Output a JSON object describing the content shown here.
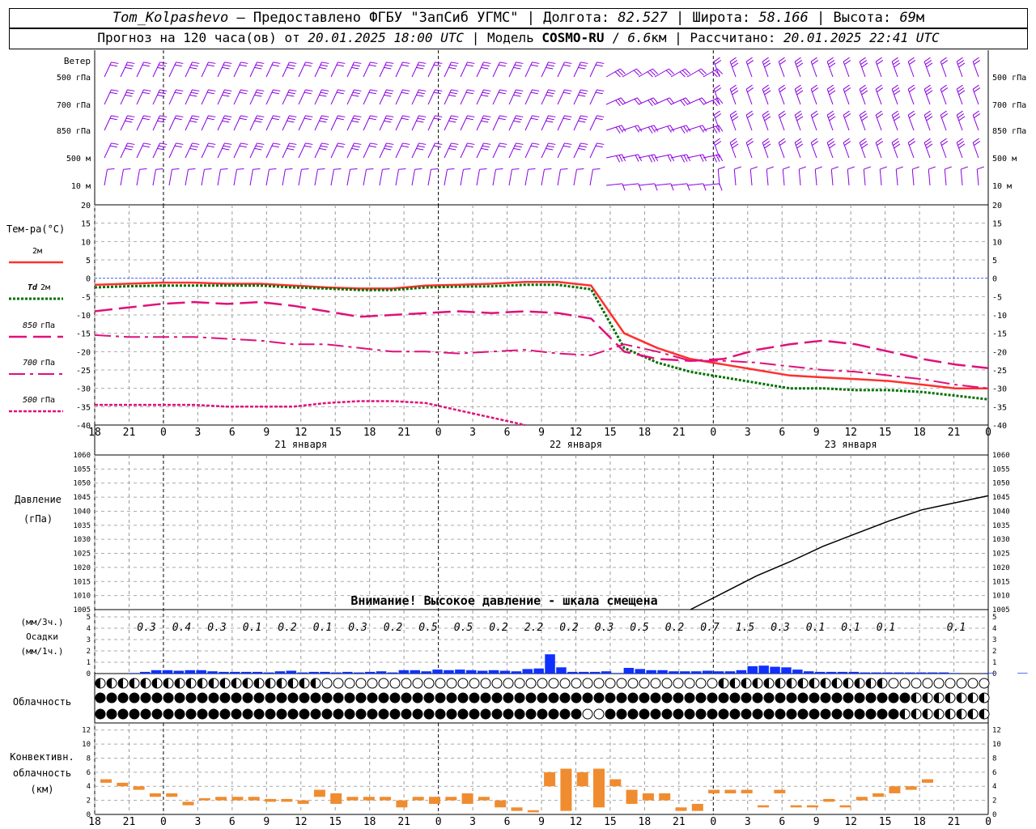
{
  "header": {
    "station": "Tom_Kolpashevo",
    "provider_sep": " — ",
    "provider": "Предоставлено ФГБУ \"ЗапСиб УГМС\" ",
    "lon_label": " Долгота: ",
    "lon": "82.527",
    "lat_label": " Широта: ",
    "lat": "58.166",
    "alt_label": " Высота: ",
    "alt": "69",
    "alt_unit": "м",
    "forecast_prefix": "Прогноз на 120 часа(ов) от ",
    "forecast_from": "20.01.2025 18:00 UTC",
    "model_label": "  Модель ",
    "model": "COSMO-RU",
    "model_sep": " / ",
    "model_res": "6.6",
    "model_res_unit": "км",
    "calc_label": " Рассчитано: ",
    "calc_time": "20.01.2025 22:41 UTC"
  },
  "chart_data": {
    "type": "line",
    "x_ticks": [
      "18",
      "21",
      "0",
      "3",
      "6",
      "9",
      "12",
      "15",
      "18",
      "21",
      "0",
      "3",
      "6",
      "9",
      "12",
      "15",
      "18",
      "21",
      "0",
      "3",
      "6",
      "9",
      "12",
      "15",
      "18",
      "21",
      "0"
    ],
    "day_labels": [
      "21 января",
      "22 января",
      "23 января"
    ],
    "wind": {
      "title": "Ветер",
      "levels": [
        "500 гПа",
        "700 гПа",
        "850 гПа",
        "500 м",
        "10  м"
      ],
      "color": "#8a00e0"
    },
    "temperature": {
      "title": "Тем-ра(°C)",
      "ylim": [
        -40,
        20
      ],
      "yticks": [
        20,
        15,
        10,
        5,
        0,
        -5,
        -10,
        -15,
        -20,
        -25,
        -30,
        -35,
        -40
      ],
      "series": [
        {
          "name": "2м",
          "color": "#ff3030",
          "values": [
            -1.8,
            -1.5,
            -1.2,
            -1.2,
            -1.5,
            -1.5,
            -2,
            -2.5,
            -2.8,
            -2.8,
            -2,
            -1.8,
            -1.5,
            -1,
            -1,
            -2,
            -15,
            -19,
            -22,
            -23.5,
            -25,
            -26.5,
            -27,
            -27.5,
            -28,
            -29,
            -30,
            -30
          ]
        },
        {
          "name": "Td",
          "name_suffix": "2м",
          "color": "#007000",
          "values": [
            -2.5,
            -2.2,
            -2,
            -2,
            -2,
            -2,
            -2.5,
            -2.8,
            -3.2,
            -3.2,
            -2.5,
            -2.3,
            -2.2,
            -1.8,
            -1.8,
            -3,
            -19,
            -23,
            -25.5,
            -27,
            -28.5,
            -30,
            -30,
            -30.5,
            -30.5,
            -31,
            -32,
            -33
          ]
        },
        {
          "name": "850",
          "name_suffix": "гПа",
          "color": "#e0107a",
          "values": [
            -9,
            -8,
            -7,
            -6.5,
            -7,
            -6.5,
            -7.5,
            -9,
            -10.5,
            -10,
            -9.5,
            -9,
            -9.5,
            -9,
            -9.5,
            -11,
            -20,
            -22,
            -22.5,
            -22,
            -19.5,
            -18,
            -17,
            -18,
            -20,
            -22,
            -23.5,
            -24.5
          ]
        },
        {
          "name": "700",
          "name_suffix": "гПа",
          "color": "#e0107a",
          "values": [
            -15.5,
            -16,
            -16,
            -16,
            -16.5,
            -17,
            -18,
            -18,
            -19,
            -20,
            -20,
            -20.5,
            -20,
            -19.5,
            -20.5,
            -21,
            -18,
            -20,
            -22.5,
            -22.5,
            -23,
            -24,
            -25,
            -25.5,
            -26.5,
            -27.5,
            -29,
            -30
          ]
        },
        {
          "name": "500",
          "name_suffix": "гПа",
          "color": "#e0107a",
          "values": [
            -34.5,
            -34.5,
            -34.5,
            -34.5,
            -35,
            -35,
            -35,
            -34,
            -33.5,
            -33.5,
            -34,
            -36,
            -38,
            -40.5,
            null,
            null,
            null,
            null,
            null,
            null,
            null,
            null,
            null,
            null,
            null,
            null,
            null,
            null
          ]
        }
      ]
    },
    "pressure": {
      "title": "Давление",
      "unit": "(гПа)",
      "ylim": [
        1005,
        1060
      ],
      "yticks": [
        1060,
        1055,
        1050,
        1045,
        1040,
        1035,
        1030,
        1025,
        1020,
        1015,
        1010,
        1005
      ],
      "warning": "Внимание! Высокое давление - шкала смещена",
      "values": [
        null,
        null,
        null,
        null,
        null,
        null,
        null,
        null,
        null,
        null,
        null,
        null,
        null,
        null,
        null,
        null,
        null,
        null,
        1005,
        1011,
        1017,
        1022,
        1027.5,
        1032,
        1036.5,
        1040.5,
        1043,
        1045.5
      ]
    },
    "precip": {
      "title": "Осадки",
      "unit_3h": "(мм/3ч.)",
      "unit_1h": "(мм/1ч.)",
      "ylim": [
        0,
        5
      ],
      "yticks": [
        5,
        4,
        3,
        2,
        1,
        0
      ],
      "totals": [
        "0.3",
        "0.4",
        "0.3",
        "0.1",
        "0.2",
        "0.1",
        "0.3",
        "0.2",
        "0.5",
        "0.5",
        "0.2",
        "2.2",
        "0.2",
        "0.3",
        "0.5",
        "0.2",
        "0.7",
        "1.5",
        "0.3",
        "0.1",
        "0.1",
        "0.1",
        "",
        "0.1",
        ""
      ],
      "color": "#1030ff"
    },
    "cloud": {
      "title": "Облачность"
    },
    "convective": {
      "title_1": "Конвективн.",
      "title_2": "облачность",
      "unit": "(км)",
      "ylim": [
        0,
        13
      ],
      "yticks": [
        12,
        10,
        8,
        6,
        4,
        2,
        0
      ],
      "color": "#f08c30",
      "bars": [
        [
          0,
          4.5,
          5
        ],
        [
          1,
          4,
          4.5
        ],
        [
          2,
          3.5,
          4
        ],
        [
          3,
          2.5,
          3
        ],
        [
          4,
          2.5,
          3
        ],
        [
          5,
          1.3,
          1.8
        ],
        [
          6,
          2,
          2.3
        ],
        [
          7,
          2,
          2.5
        ],
        [
          8,
          2,
          2.5
        ],
        [
          9,
          2,
          2.5
        ],
        [
          10,
          1.8,
          2.2
        ],
        [
          11,
          1.8,
          2.2
        ],
        [
          12,
          1.5,
          2
        ],
        [
          13,
          2.5,
          3.5
        ],
        [
          14,
          1.5,
          3
        ],
        [
          15,
          2,
          2.5
        ],
        [
          16,
          2,
          2.5
        ],
        [
          17,
          2,
          2.5
        ],
        [
          18,
          1,
          2
        ],
        [
          19,
          2,
          2.5
        ],
        [
          20,
          1.5,
          2.5
        ],
        [
          21,
          2,
          2.5
        ],
        [
          22,
          1.5,
          3
        ],
        [
          23,
          2,
          2.5
        ],
        [
          24,
          1,
          2
        ],
        [
          25,
          0.5,
          1
        ],
        [
          26,
          0.3,
          0.6
        ],
        [
          27,
          4,
          6
        ],
        [
          28,
          0.5,
          6.5
        ],
        [
          29,
          4,
          6
        ],
        [
          30,
          1,
          6.5
        ],
        [
          31,
          4,
          5
        ],
        [
          32,
          1.5,
          3.5
        ],
        [
          33,
          2,
          3
        ],
        [
          34,
          2,
          3
        ],
        [
          35,
          0.5,
          1
        ],
        [
          36,
          0.5,
          1.5
        ],
        [
          37,
          3,
          3.5
        ],
        [
          38,
          3,
          3.5
        ],
        [
          39,
          3,
          3.5
        ],
        [
          40,
          1,
          1.3
        ],
        [
          41,
          3,
          3.5
        ],
        [
          42,
          1,
          1.3
        ],
        [
          43,
          1,
          1.3
        ],
        [
          44,
          1.8,
          2.2
        ],
        [
          45,
          1,
          1.3
        ],
        [
          46,
          2,
          2.5
        ],
        [
          47,
          2.5,
          3
        ],
        [
          48,
          3,
          4
        ],
        [
          49,
          3.5,
          4
        ],
        [
          50,
          4.5,
          5
        ]
      ]
    }
  }
}
